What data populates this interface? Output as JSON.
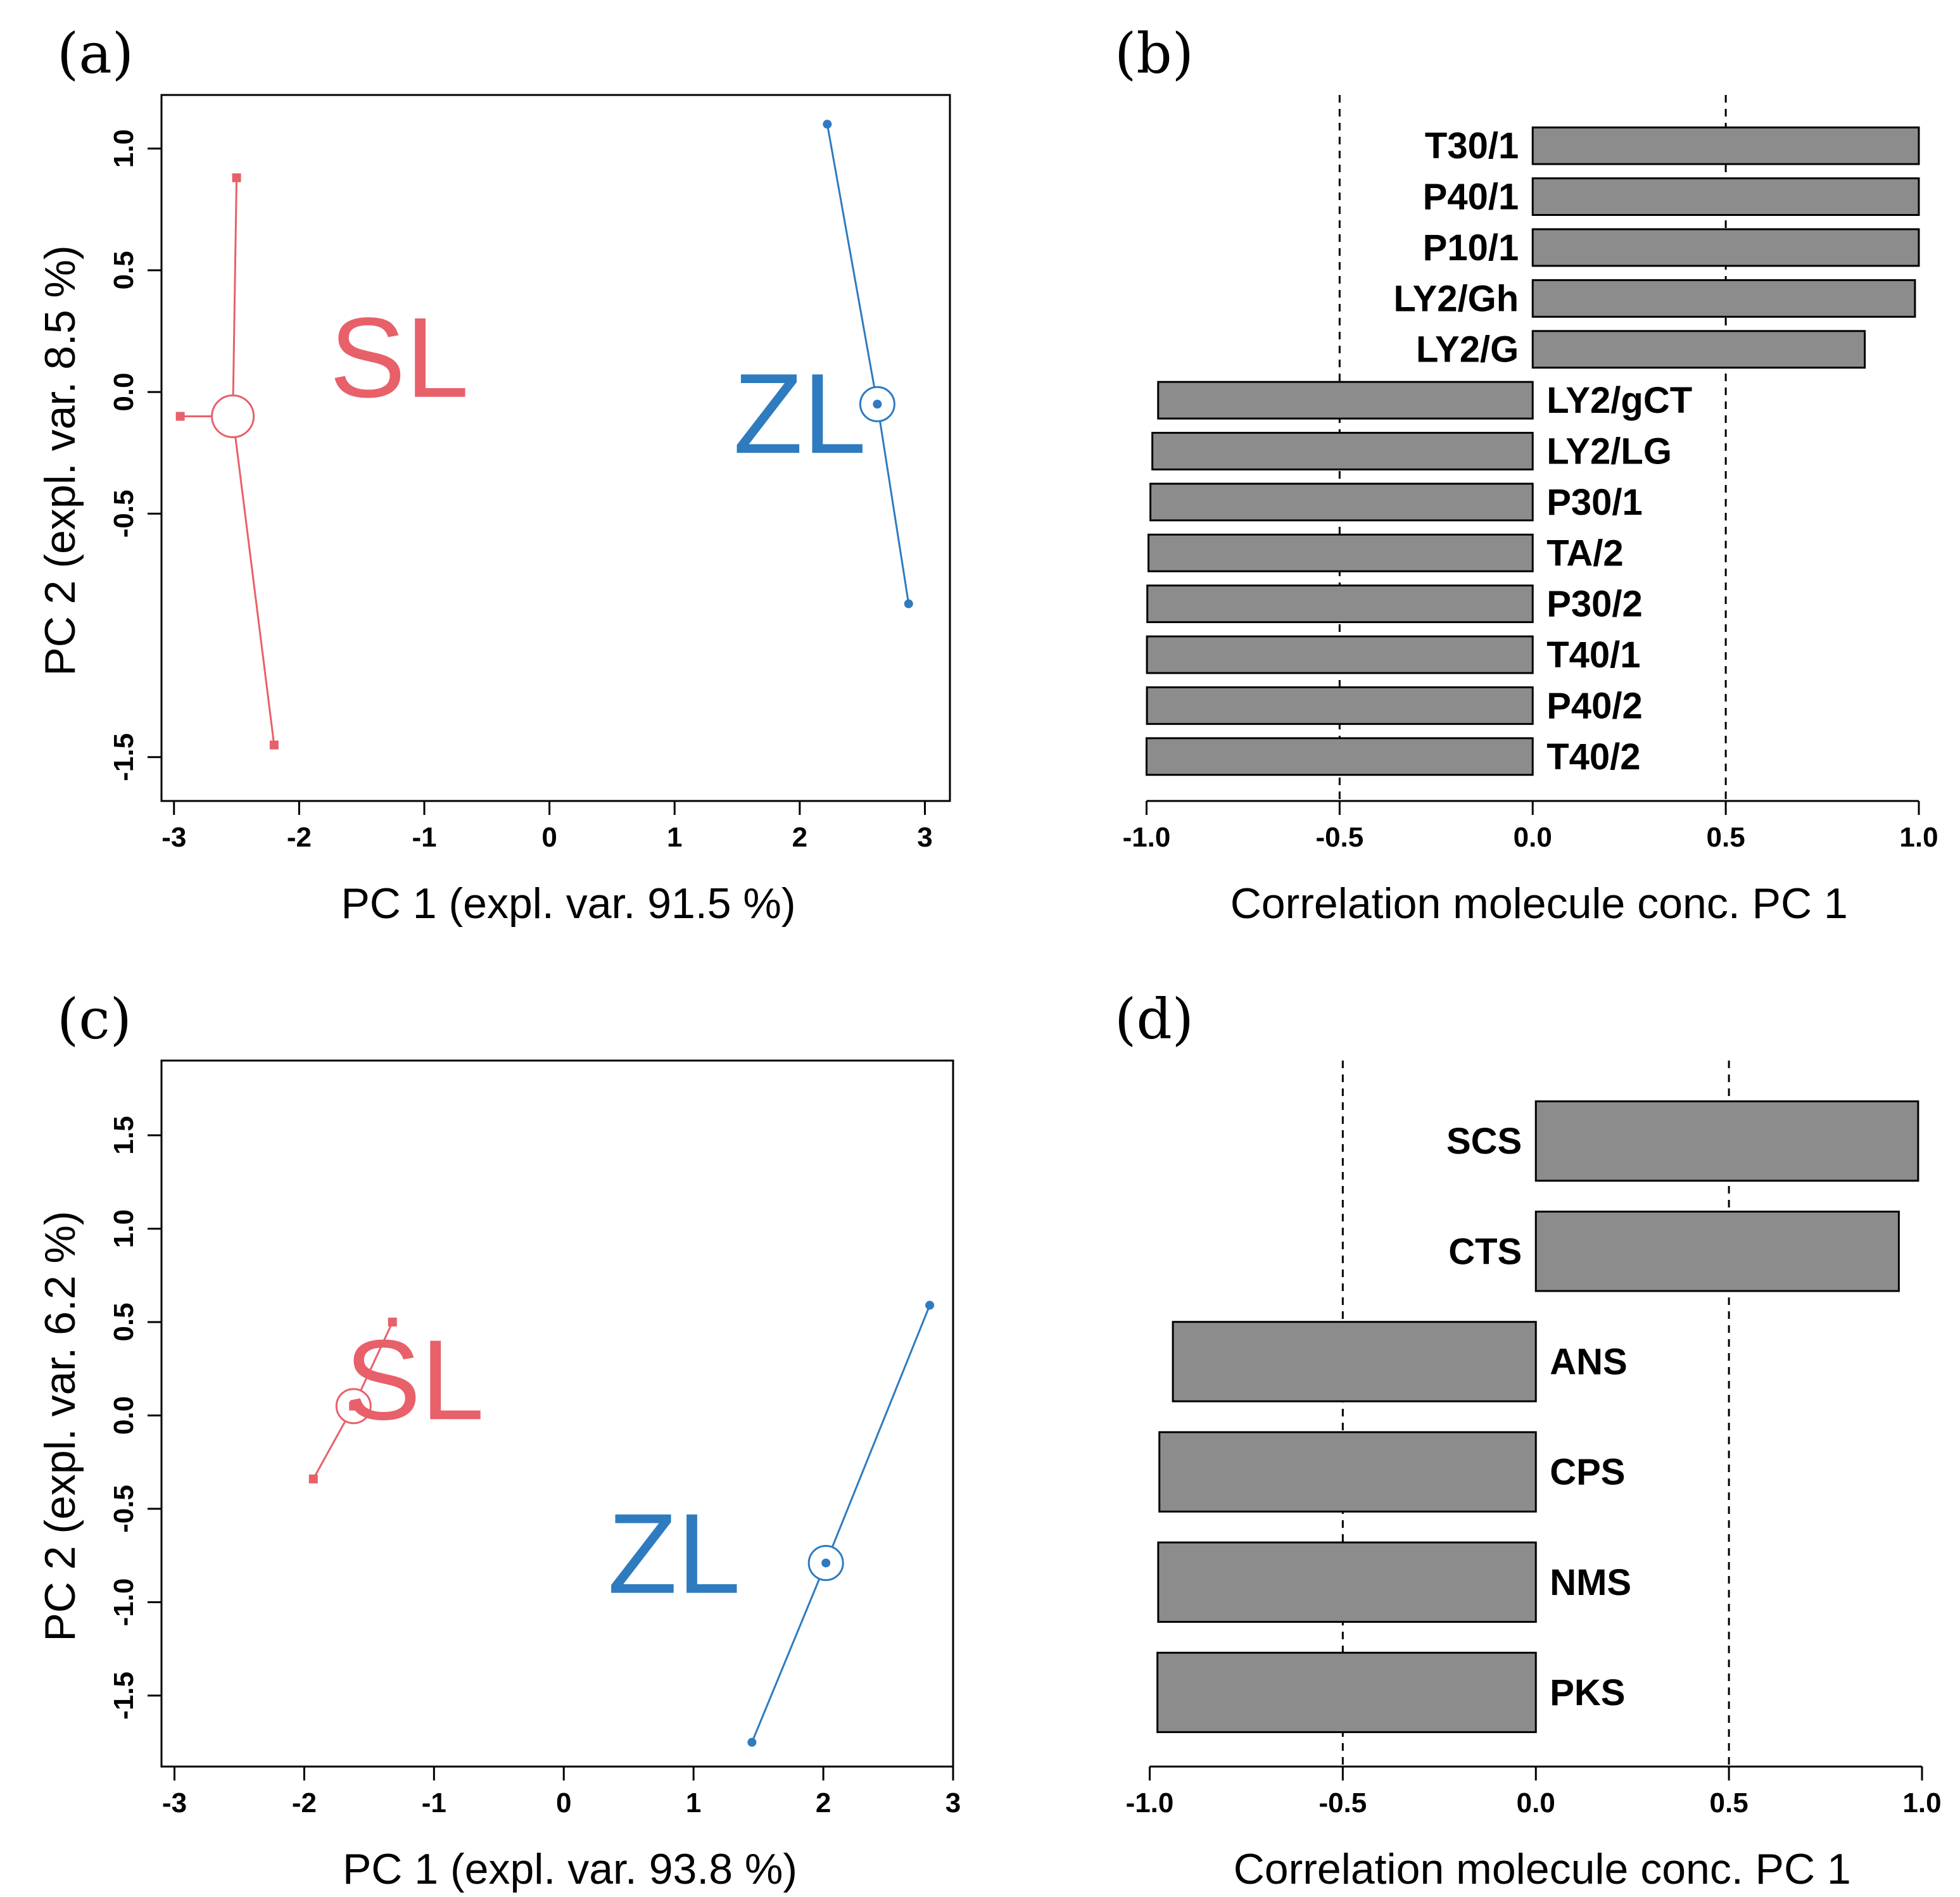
{
  "colors": {
    "SL": "#e8606a",
    "ZL": "#2e7bbf",
    "bar_fill": "#8c8c8c"
  },
  "panel_labels": {
    "a": "(a)",
    "b": "(b)",
    "c": "(c)",
    "d": "(d)"
  },
  "chart_data": [
    {
      "panel": "a",
      "type": "scatter",
      "xlabel": "PC 1 (expl. var. 91.5 %)",
      "ylabel": "PC 2 (expl. var. 8.5 %)",
      "xlim": [
        -3.1,
        3.2
      ],
      "ylim": [
        -1.68,
        1.22
      ],
      "xticks": [
        -3,
        -2,
        -1,
        0,
        1,
        2,
        3
      ],
      "yticks": [
        -1.5,
        -0.5,
        0.0,
        0.5,
        1.0
      ],
      "ytick_labels": [
        "-1.5",
        "-0.5",
        "0.0",
        "0.5",
        "1.0"
      ],
      "groups": [
        {
          "name": "SL",
          "color_key": "SL",
          "marker": "square",
          "centroid": [
            -2.53,
            -0.1
          ],
          "centroid_size": "large",
          "points": [
            [
              -2.5,
              0.88
            ],
            [
              -2.95,
              -0.1
            ],
            [
              -2.2,
              -1.45
            ]
          ],
          "label_pos": [
            -1.2,
            -0.02
          ]
        },
        {
          "name": "ZL",
          "color_key": "ZL",
          "marker": "circle",
          "centroid": [
            2.62,
            -0.05
          ],
          "centroid_size": "small",
          "points": [
            [
              2.22,
              1.1
            ],
            [
              2.87,
              -0.87
            ]
          ],
          "label_pos": [
            2.0,
            -0.25
          ]
        }
      ]
    },
    {
      "panel": "b",
      "type": "bar",
      "orientation": "horizontal",
      "xlabel": "Correlation molecule conc. PC 1",
      "xlim": [
        -1.05,
        1.0
      ],
      "xticks": [
        -1.0,
        -0.5,
        0.0,
        0.5,
        1.0
      ],
      "xtick_labels": [
        "-1.0",
        "-0.5",
        "0.0",
        "0.5",
        "1.0"
      ],
      "reference_lines": [
        -0.5,
        0.5
      ],
      "categories": [
        "T30/1",
        "P40/1",
        "P10/1",
        "LY2/Gh",
        "LY2/G",
        "LY2/gCT",
        "LY2/LG",
        "P30/1",
        "TA/2",
        "P30/2",
        "T40/1",
        "P40/2",
        "T40/2"
      ],
      "values": [
        1.0,
        1.0,
        1.0,
        0.99,
        0.86,
        -0.97,
        -0.985,
        -0.99,
        -0.995,
        -0.998,
        -0.999,
        -0.999,
        -1.0
      ]
    },
    {
      "panel": "c",
      "type": "scatter",
      "xlabel": "PC 1 (expl. var. 93.8 %)",
      "ylabel": "PC 2 (expl. var. 6.2 %)",
      "xlim": [
        -3.1,
        3.0
      ],
      "ylim": [
        -1.88,
        1.9
      ],
      "xticks": [
        -3,
        -2,
        -1,
        0,
        1,
        2,
        3
      ],
      "yticks": [
        -1.5,
        -1.0,
        -0.5,
        0.0,
        0.5,
        1.0,
        1.5
      ],
      "ytick_labels": [
        "-1.5",
        "-1.0",
        "-0.5",
        "0.0",
        "0.5",
        "1.0",
        "1.5"
      ],
      "groups": [
        {
          "name": "SL",
          "color_key": "SL",
          "marker": "square",
          "centroid": [
            -1.62,
            0.05
          ],
          "centroid_size": "medium",
          "points": [
            [
              -1.32,
              0.5
            ],
            [
              -1.93,
              -0.34
            ]
          ],
          "label_pos": [
            -1.15,
            -0.02
          ]
        },
        {
          "name": "ZL",
          "color_key": "ZL",
          "marker": "circle",
          "centroid": [
            2.02,
            -0.79
          ],
          "centroid_size": "medium",
          "points": [
            [
              2.82,
              0.59
            ],
            [
              1.45,
              -1.75
            ]
          ],
          "label_pos": [
            0.85,
            -0.95
          ]
        }
      ]
    },
    {
      "panel": "d",
      "type": "bar",
      "orientation": "horizontal",
      "xlabel": "Correlation molecule conc. PC 1",
      "xlim": [
        -1.05,
        1.0
      ],
      "xticks": [
        -1.0,
        -0.5,
        0.0,
        0.5,
        1.0
      ],
      "xtick_labels": [
        "-1.0",
        "-0.5",
        "0.0",
        "0.5",
        "1.0"
      ],
      "reference_lines": [
        -0.5,
        0.5
      ],
      "categories": [
        "SCS",
        "CTS",
        "ANS",
        "CPS",
        "NMS",
        "PKS"
      ],
      "values": [
        0.99,
        0.94,
        -0.94,
        -0.975,
        -0.978,
        -0.98
      ]
    }
  ]
}
